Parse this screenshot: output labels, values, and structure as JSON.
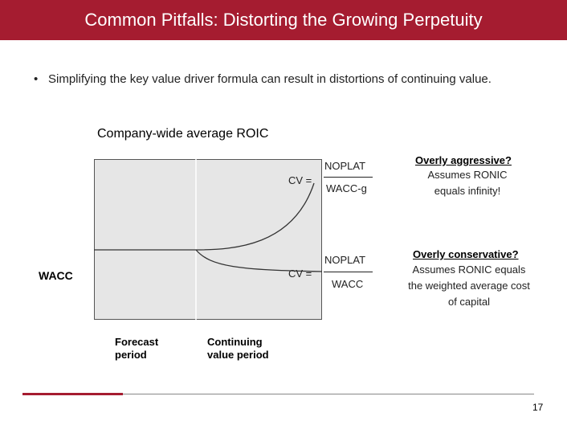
{
  "slide": {
    "title": "Common Pitfalls: Distorting the Growing Perpetuity",
    "bullet": "Simplifying the key value driver formula can result in distortions of continuing value.",
    "page_number": "17"
  },
  "diagram": {
    "heading": "Company-wide average ROIC",
    "wacc_label": "WACC",
    "forecast_label": "Forecast period",
    "continuing_label": "Continuing value period",
    "formulas": [
      {
        "lhs": "CV =",
        "numerator": "NOPLAT",
        "denominator": "WACC-g",
        "note_heading": "Overly aggressive?",
        "note_body": "Assumes RONIC equals infinity!"
      },
      {
        "lhs": "CV =",
        "numerator": "NOPLAT",
        "denominator": "WACC",
        "note_heading": "Overly conservative?",
        "note_body": "Assumes RONIC equals the weighted average cost of capital"
      }
    ]
  },
  "colors": {
    "accent": "#a51c30",
    "plot_background": "#e6e6e6"
  }
}
